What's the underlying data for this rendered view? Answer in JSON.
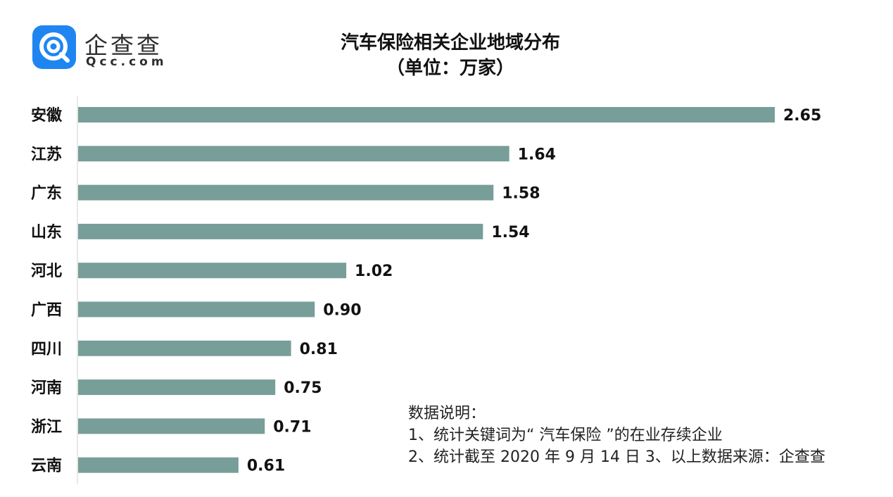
{
  "brand": {
    "name_cn": "企查查",
    "name_en": "Qcc.com",
    "badge_color": "#1f86f1"
  },
  "title": "汽车保险相关企业地域分布",
  "subtitle": "（单位：万家）",
  "notes": {
    "heading": "数据说明：",
    "line1": "1、统计关键词为“ 汽车保险 ”的在业存续企业",
    "line2": "2、统计截至 2020 年 9 月 14 日  3、以上数据来源：企查查"
  },
  "chart_data": {
    "type": "bar",
    "orientation": "horizontal",
    "categories": [
      "安徽",
      "江苏",
      "广东",
      "山东",
      "河北",
      "广西",
      "四川",
      "河南",
      "浙江",
      "云南"
    ],
    "values": [
      2.65,
      1.64,
      1.58,
      1.54,
      1.02,
      0.9,
      0.81,
      0.75,
      0.71,
      0.61
    ],
    "value_labels": [
      "2.65",
      "1.64",
      "1.58",
      "1.54",
      "1.02",
      "0.90",
      "0.81",
      "0.75",
      "0.71",
      "0.61"
    ],
    "xlim": [
      0,
      2.65
    ],
    "bar_color": "#779e99",
    "grid": false,
    "legend": "none"
  }
}
